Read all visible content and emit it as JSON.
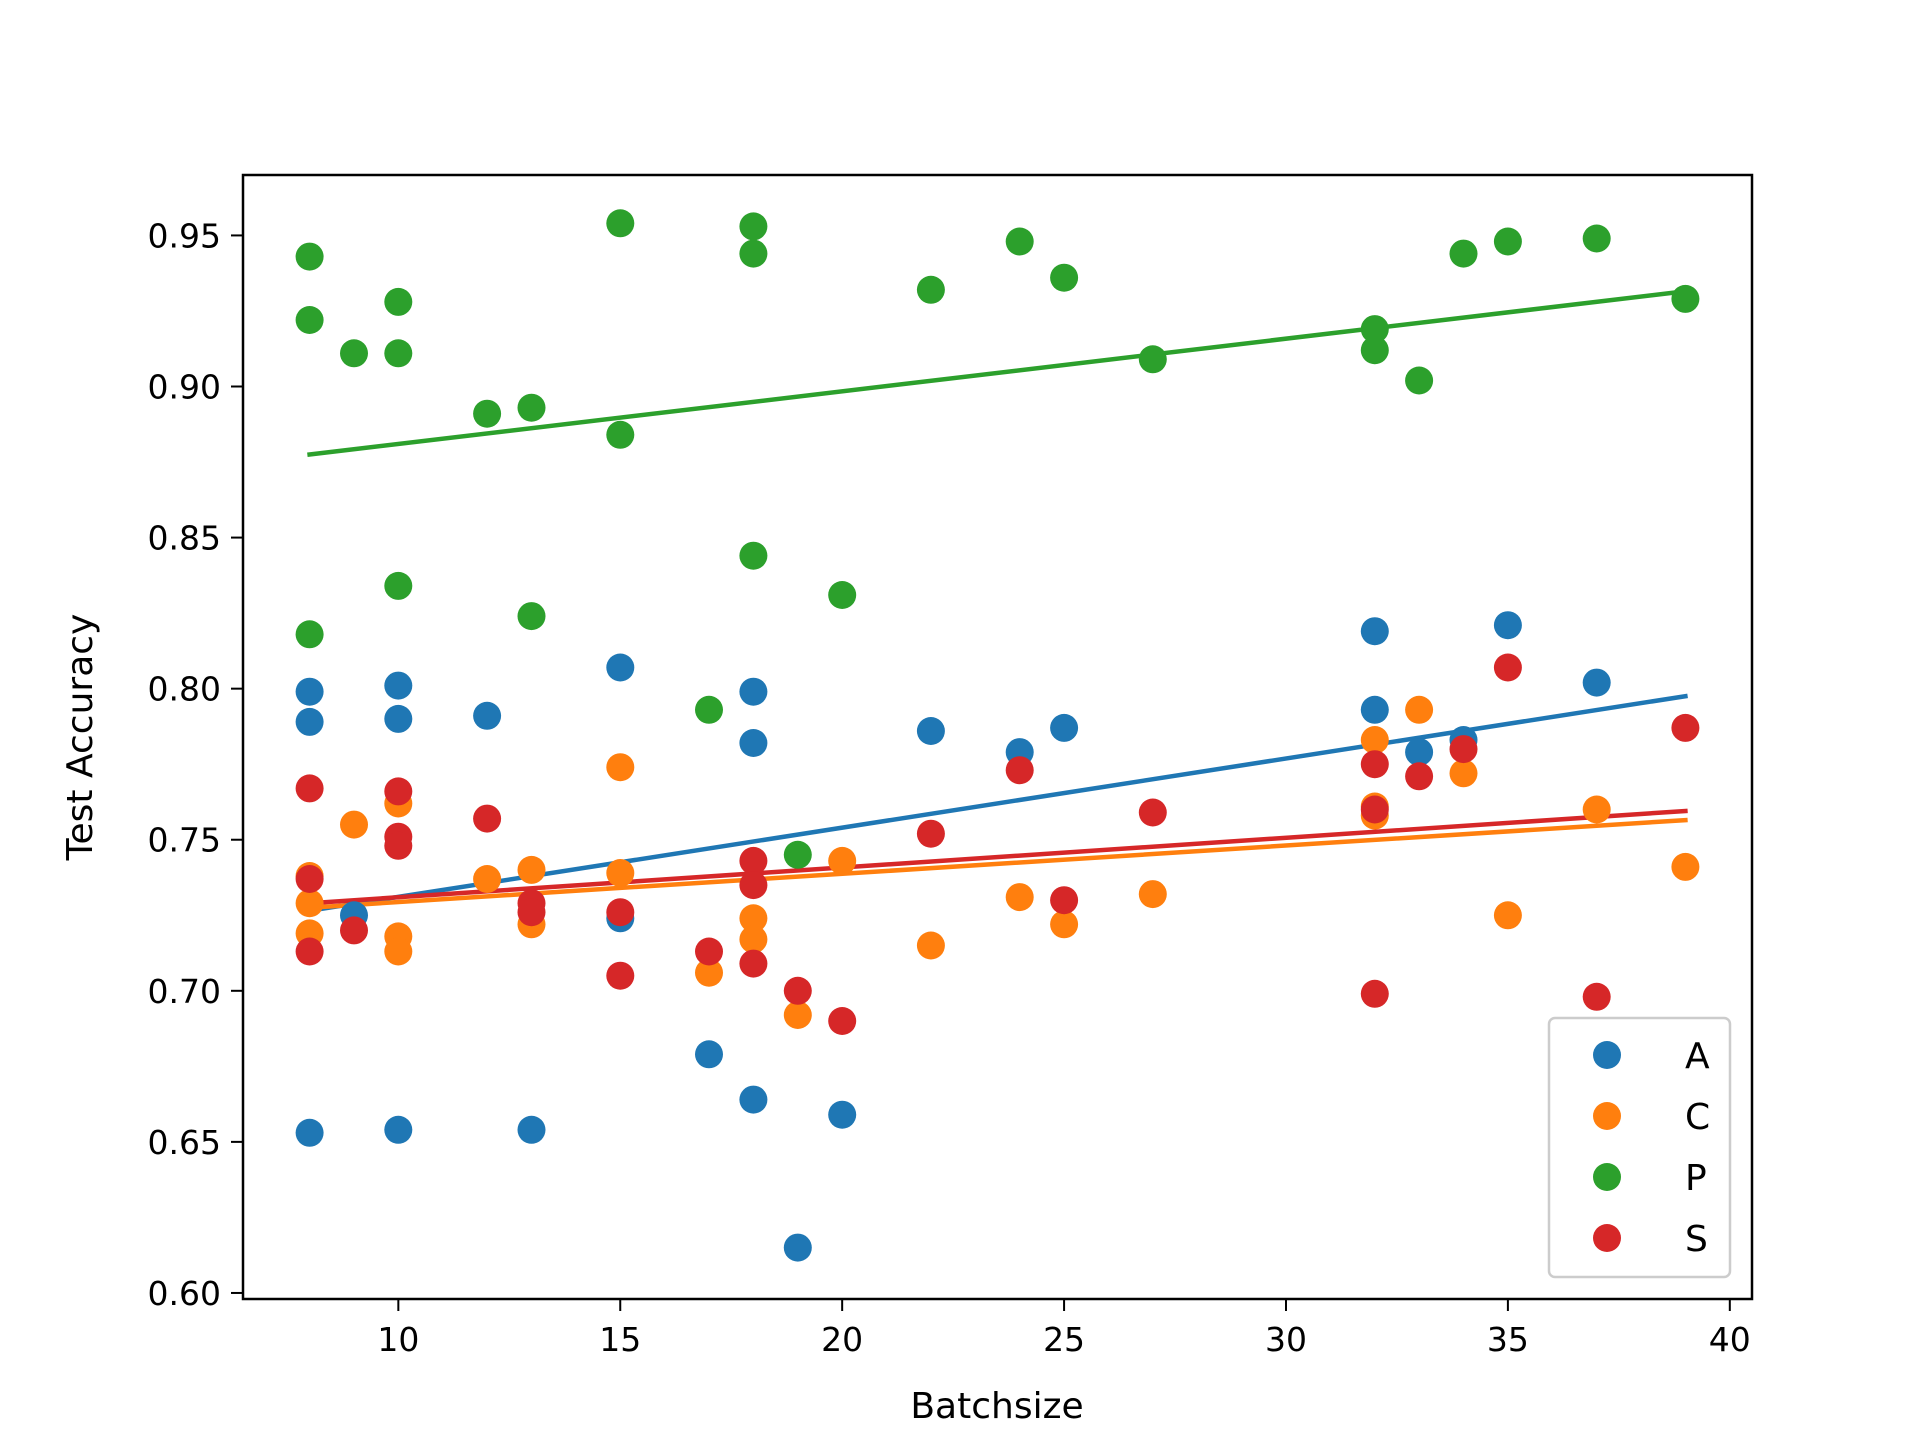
{
  "chart_data": {
    "type": "scatter",
    "title": "",
    "xlabel": "Batchsize",
    "ylabel": "Test Accuracy",
    "xlim": [
      6.5,
      40.5
    ],
    "ylim": [
      0.598,
      0.97
    ],
    "xticks": [
      10,
      15,
      20,
      25,
      30,
      35,
      40
    ],
    "yticks": [
      0.6,
      0.65,
      0.7,
      0.75,
      0.8,
      0.85,
      0.9,
      0.95
    ],
    "ytick_labels": [
      "0.60",
      "0.65",
      "0.70",
      "0.75",
      "0.80",
      "0.85",
      "0.90",
      "0.95"
    ],
    "grid": false,
    "legend_position": "lower-right",
    "series": [
      {
        "name": "A",
        "color": "#1f77b4",
        "points": [
          [
            8,
            0.799
          ],
          [
            8,
            0.789
          ],
          [
            8,
            0.653
          ],
          [
            9,
            0.725
          ],
          [
            10,
            0.801
          ],
          [
            10,
            0.79
          ],
          [
            10,
            0.654
          ],
          [
            12,
            0.791
          ],
          [
            13,
            0.654
          ],
          [
            15,
            0.807
          ],
          [
            15,
            0.724
          ],
          [
            17,
            0.679
          ],
          [
            18,
            0.799
          ],
          [
            18,
            0.782
          ],
          [
            18,
            0.664
          ],
          [
            19,
            0.615
          ],
          [
            20,
            0.659
          ],
          [
            22,
            0.786
          ],
          [
            24,
            0.779
          ],
          [
            25,
            0.787
          ],
          [
            32,
            0.819
          ],
          [
            32,
            0.793
          ],
          [
            33,
            0.779
          ],
          [
            34,
            0.783
          ],
          [
            35,
            0.821
          ],
          [
            37,
            0.802
          ]
        ],
        "trend": [
          [
            8,
            0.7265
          ],
          [
            39,
            0.7975
          ]
        ]
      },
      {
        "name": "C",
        "color": "#ff7f0e",
        "points": [
          [
            8,
            0.738
          ],
          [
            8,
            0.729
          ],
          [
            8,
            0.719
          ],
          [
            9,
            0.755
          ],
          [
            10,
            0.762
          ],
          [
            10,
            0.718
          ],
          [
            10,
            0.713
          ],
          [
            12,
            0.737
          ],
          [
            13,
            0.74
          ],
          [
            13,
            0.722
          ],
          [
            15,
            0.774
          ],
          [
            15,
            0.739
          ],
          [
            17,
            0.706
          ],
          [
            18,
            0.724
          ],
          [
            18,
            0.717
          ],
          [
            19,
            0.692
          ],
          [
            20,
            0.743
          ],
          [
            22,
            0.715
          ],
          [
            24,
            0.731
          ],
          [
            25,
            0.722
          ],
          [
            27,
            0.732
          ],
          [
            32,
            0.783
          ],
          [
            32,
            0.761
          ],
          [
            32,
            0.758
          ],
          [
            33,
            0.793
          ],
          [
            34,
            0.772
          ],
          [
            35,
            0.725
          ],
          [
            37,
            0.76
          ],
          [
            39,
            0.741
          ]
        ],
        "trend": [
          [
            8,
            0.7275
          ],
          [
            39,
            0.7565
          ]
        ]
      },
      {
        "name": "P",
        "color": "#2ca02c",
        "points": [
          [
            8,
            0.943
          ],
          [
            8,
            0.922
          ],
          [
            8,
            0.818
          ],
          [
            9,
            0.911
          ],
          [
            10,
            0.928
          ],
          [
            10,
            0.911
          ],
          [
            10,
            0.834
          ],
          [
            12,
            0.891
          ],
          [
            13,
            0.893
          ],
          [
            13,
            0.824
          ],
          [
            15,
            0.954
          ],
          [
            15,
            0.884
          ],
          [
            17,
            0.793
          ],
          [
            18,
            0.953
          ],
          [
            18,
            0.944
          ],
          [
            18,
            0.844
          ],
          [
            19,
            0.745
          ],
          [
            20,
            0.831
          ],
          [
            22,
            0.932
          ],
          [
            24,
            0.948
          ],
          [
            25,
            0.936
          ],
          [
            27,
            0.909
          ],
          [
            32,
            0.919
          ],
          [
            32,
            0.912
          ],
          [
            33,
            0.902
          ],
          [
            34,
            0.944
          ],
          [
            35,
            0.948
          ],
          [
            37,
            0.949
          ],
          [
            39,
            0.929
          ]
        ],
        "trend": [
          [
            8,
            0.8775
          ],
          [
            39,
            0.9315
          ]
        ]
      },
      {
        "name": "S",
        "color": "#d62728",
        "points": [
          [
            8,
            0.767
          ],
          [
            8,
            0.737
          ],
          [
            8,
            0.713
          ],
          [
            9,
            0.72
          ],
          [
            10,
            0.766
          ],
          [
            10,
            0.751
          ],
          [
            10,
            0.748
          ],
          [
            12,
            0.757
          ],
          [
            13,
            0.729
          ],
          [
            13,
            0.726
          ],
          [
            15,
            0.726
          ],
          [
            15,
            0.705
          ],
          [
            17,
            0.713
          ],
          [
            18,
            0.743
          ],
          [
            18,
            0.735
          ],
          [
            18,
            0.709
          ],
          [
            19,
            0.7
          ],
          [
            20,
            0.69
          ],
          [
            22,
            0.752
          ],
          [
            24,
            0.773
          ],
          [
            25,
            0.73
          ],
          [
            27,
            0.759
          ],
          [
            32,
            0.775
          ],
          [
            32,
            0.76
          ],
          [
            32,
            0.699
          ],
          [
            33,
            0.771
          ],
          [
            34,
            0.78
          ],
          [
            35,
            0.807
          ],
          [
            37,
            0.698
          ],
          [
            39,
            0.787
          ]
        ],
        "trend": [
          [
            8,
            0.729
          ],
          [
            39,
            0.7595
          ]
        ]
      }
    ]
  }
}
